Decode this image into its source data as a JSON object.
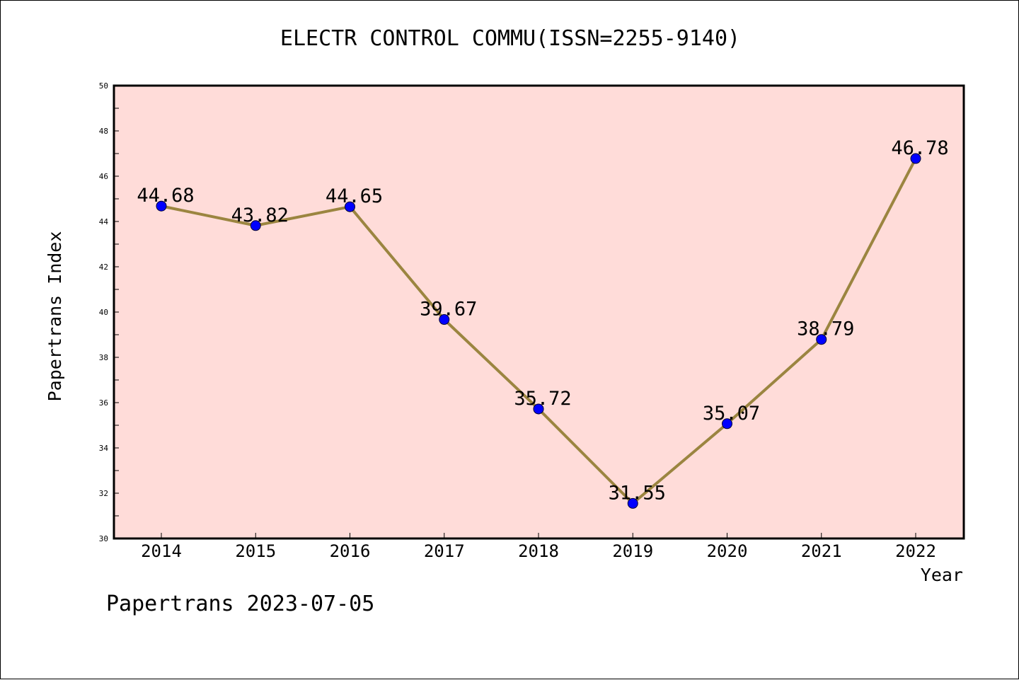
{
  "chart_data": {
    "type": "line",
    "title": "ELECTR CONTROL COMMU(ISSN=2255-9140)",
    "xlabel": "Year",
    "ylabel": "Papertrans Index",
    "categories": [
      "2014",
      "2015",
      "2016",
      "2017",
      "2018",
      "2019",
      "2020",
      "2021",
      "2022"
    ],
    "series": [
      {
        "values": [
          44.68,
          43.82,
          44.65,
          39.67,
          35.72,
          31.55,
          35.07,
          38.79,
          46.78
        ],
        "labels": [
          "44.68",
          "43.82",
          "44.65",
          "39.67",
          "35.72",
          "31.55",
          "35.07",
          "38.79",
          "46.78"
        ]
      }
    ],
    "ylim": [
      30,
      50
    ],
    "yticks": [
      "30",
      "32",
      "34",
      "36",
      "38",
      "40",
      "42",
      "44",
      "46",
      "48",
      "50"
    ],
    "grid": false,
    "legend": "none",
    "colors": {
      "plot_background": "#ffdcd9",
      "line": "#9b8540",
      "marker": "#0000ff",
      "frame": "#000000"
    }
  },
  "footer": {
    "note": "Papertrans 2023-07-05"
  }
}
